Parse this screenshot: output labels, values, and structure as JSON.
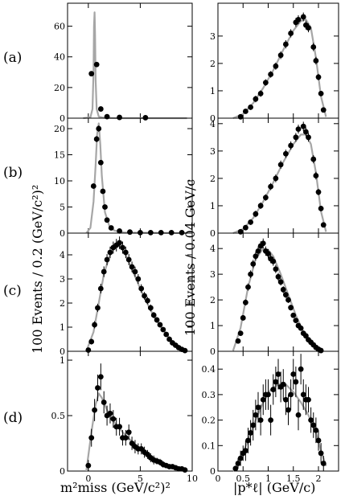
{
  "row_labels": [
    "(a)",
    "(b)",
    "(c)",
    "(d)"
  ],
  "left_ylabel": "100 Events / 0.2 (GeV/c²)²",
  "right_ylabel": "100 Events / 0.04 GeV/c",
  "left_xlabel": "m²miss (GeV/c²)²",
  "right_xlabel": "|p*ℓ| (GeV/c)",
  "colors": {
    "fit_curve": "#a6a6a6",
    "points": "#000000",
    "axes": "#000000"
  },
  "chart_data": [
    {
      "type": "scatter",
      "panel": "a-left",
      "xlim": [
        -2,
        10
      ],
      "ylim": [
        0,
        75
      ],
      "yticks": [
        0,
        20,
        40,
        60
      ],
      "yticklabels": [
        "0",
        "20",
        "40",
        "60"
      ],
      "xticks": [
        0,
        5,
        10
      ],
      "xticklabels": [],
      "grid": false,
      "fit": {
        "x": [
          -0.5,
          0.2,
          0.4,
          0.5,
          0.55,
          0.6,
          0.65,
          0.7,
          0.8,
          1.0,
          1.5,
          3,
          9.5
        ],
        "y": [
          0,
          0.5,
          6,
          30,
          60,
          69,
          55,
          25,
          6,
          1,
          0.2,
          0,
          0
        ]
      },
      "points": {
        "x": [
          0.3,
          0.8,
          1.2,
          1.8,
          3.0,
          5.5
        ],
        "y": [
          29,
          35,
          6,
          1,
          0.5,
          0.3
        ],
        "err": [
          1,
          1,
          0.5,
          0.2,
          0.2,
          0.2
        ]
      }
    },
    {
      "type": "scatter",
      "panel": "a-right",
      "xlim": [
        0,
        2.4
      ],
      "ylim": [
        0,
        4.2
      ],
      "yticks": [
        0,
        1,
        2,
        3
      ],
      "yticklabels": [
        "0",
        "1",
        "2",
        "3"
      ],
      "xticks": [
        0,
        0.5,
        1,
        1.5,
        2
      ],
      "xticklabels": [],
      "grid": false,
      "fit": {
        "x": [
          0.3,
          0.5,
          0.7,
          0.9,
          1.1,
          1.3,
          1.5,
          1.65,
          1.75,
          1.85,
          1.95,
          2.05,
          2.15
        ],
        "y": [
          0,
          0.15,
          0.55,
          1.1,
          1.75,
          2.5,
          3.2,
          3.55,
          3.6,
          3.3,
          2.2,
          0.8,
          0.05
        ]
      },
      "points": {
        "x": [
          0.45,
          0.55,
          0.65,
          0.75,
          0.85,
          0.95,
          1.05,
          1.15,
          1.25,
          1.35,
          1.45,
          1.55,
          1.6,
          1.7,
          1.75,
          1.8,
          1.9,
          1.95,
          2.0,
          2.05,
          2.1
        ],
        "y": [
          0.05,
          0.25,
          0.4,
          0.7,
          0.9,
          1.3,
          1.6,
          1.9,
          2.3,
          2.7,
          3.1,
          3.5,
          3.6,
          3.7,
          3.4,
          3.3,
          2.6,
          2.1,
          1.5,
          0.9,
          0.3
        ],
        "err": [
          0.05,
          0.08,
          0.1,
          0.12,
          0.12,
          0.12,
          0.12,
          0.13,
          0.14,
          0.15,
          0.15,
          0.16,
          0.16,
          0.16,
          0.16,
          0.16,
          0.15,
          0.14,
          0.12,
          0.1,
          0.08
        ]
      }
    },
    {
      "type": "scatter",
      "panel": "b-left",
      "xlim": [
        -2,
        10
      ],
      "ylim": [
        0,
        22
      ],
      "yticks": [
        0,
        5,
        10,
        15,
        20
      ],
      "yticklabels": [
        "0",
        "5",
        "10",
        "15",
        "20"
      ],
      "xticks": [
        0,
        5,
        10
      ],
      "xticklabels": [],
      "grid": false,
      "fit": {
        "x": [
          -0.2,
          0.2,
          0.5,
          0.7,
          0.85,
          1.0,
          1.15,
          1.3,
          1.6,
          2.0,
          2.5,
          3.5,
          9.5
        ],
        "y": [
          0,
          1,
          6,
          13,
          19,
          21,
          17,
          11,
          4,
          1.5,
          0.5,
          0.1,
          0
        ]
      },
      "points": {
        "x": [
          0.5,
          0.8,
          1.0,
          1.2,
          1.4,
          1.6,
          1.8,
          2.2,
          3,
          4,
          5,
          6,
          7,
          8,
          9
        ],
        "y": [
          9,
          18,
          20,
          13.5,
          8,
          5,
          2.5,
          1,
          0.4,
          0.2,
          0.1,
          0.1,
          0.1,
          0.1,
          0.1
        ],
        "err": [
          0.5,
          0.6,
          0.6,
          0.5,
          0.4,
          0.3,
          0.2,
          0.1,
          0.05,
          0.05,
          0.05,
          0.05,
          0.05,
          0.05,
          0.05
        ]
      }
    },
    {
      "type": "scatter",
      "panel": "b-right",
      "xlim": [
        0,
        2.4
      ],
      "ylim": [
        0,
        4.2
      ],
      "yticks": [
        0,
        1,
        2,
        3,
        4
      ],
      "yticklabels": [
        "0",
        "1",
        "2",
        "3",
        "4"
      ],
      "xticks": [
        0,
        0.5,
        1,
        1.5,
        2
      ],
      "xticklabels": [],
      "grid": false,
      "fit": {
        "x": [
          0.3,
          0.5,
          0.7,
          0.9,
          1.1,
          1.3,
          1.5,
          1.65,
          1.75,
          1.85,
          1.95,
          2.05,
          2.15
        ],
        "y": [
          0,
          0.15,
          0.55,
          1.15,
          1.85,
          2.6,
          3.25,
          3.6,
          3.6,
          3.25,
          2.2,
          0.8,
          0.05
        ]
      },
      "points": {
        "x": [
          0.45,
          0.55,
          0.65,
          0.75,
          0.85,
          0.95,
          1.05,
          1.15,
          1.25,
          1.35,
          1.45,
          1.55,
          1.6,
          1.7,
          1.75,
          1.8,
          1.9,
          1.95,
          2.0,
          2.05,
          2.1
        ],
        "y": [
          0.05,
          0.2,
          0.4,
          0.7,
          1.0,
          1.3,
          1.7,
          2.0,
          2.5,
          2.9,
          3.2,
          3.5,
          3.8,
          3.9,
          3.7,
          3.5,
          2.7,
          2.1,
          1.5,
          0.9,
          0.3
        ],
        "err": [
          0.05,
          0.08,
          0.1,
          0.12,
          0.12,
          0.12,
          0.13,
          0.14,
          0.15,
          0.15,
          0.15,
          0.16,
          0.16,
          0.17,
          0.16,
          0.16,
          0.15,
          0.14,
          0.12,
          0.1,
          0.08
        ]
      }
    },
    {
      "type": "scatter",
      "panel": "c-left",
      "xlim": [
        -2,
        10
      ],
      "ylim": [
        0,
        4.9
      ],
      "yticks": [
        0,
        1,
        2,
        3,
        4
      ],
      "yticklabels": [
        "0",
        "1",
        "2",
        "3",
        "4"
      ],
      "xticks": [
        0,
        5,
        10
      ],
      "xticklabels": [],
      "grid": false,
      "fit": {
        "x": [
          -0.2,
          0.5,
          1.0,
          1.5,
          2.0,
          2.5,
          3.0,
          3.5,
          4.0,
          5.0,
          6.0,
          7.0,
          8.0,
          9.0,
          9.5
        ],
        "y": [
          0,
          0.8,
          2.0,
          3.2,
          3.9,
          4.35,
          4.4,
          4.1,
          3.6,
          2.6,
          1.7,
          1.0,
          0.45,
          0.12,
          0.03
        ]
      },
      "points": {
        "x": [
          0,
          0.3,
          0.6,
          0.9,
          1.2,
          1.5,
          1.8,
          2.1,
          2.4,
          2.7,
          3.0,
          3.3,
          3.6,
          3.9,
          4.2,
          4.5,
          4.8,
          5.1,
          5.4,
          5.7,
          6.0,
          6.3,
          6.6,
          6.9,
          7.2,
          7.5,
          7.8,
          8.1,
          8.4,
          8.7,
          9.0,
          9.3
        ],
        "y": [
          0.05,
          0.4,
          1.1,
          1.8,
          2.6,
          3.3,
          3.8,
          4.1,
          4.3,
          4.4,
          4.5,
          4.3,
          4.1,
          3.8,
          3.5,
          3.3,
          3.0,
          2.6,
          2.3,
          2.1,
          1.8,
          1.5,
          1.3,
          1.1,
          0.9,
          0.7,
          0.5,
          0.35,
          0.25,
          0.15,
          0.08,
          0.03
        ],
        "err": [
          0.05,
          0.12,
          0.15,
          0.17,
          0.2,
          0.22,
          0.23,
          0.24,
          0.25,
          0.26,
          0.26,
          0.25,
          0.24,
          0.23,
          0.22,
          0.21,
          0.2,
          0.18,
          0.16,
          0.15,
          0.14,
          0.13,
          0.12,
          0.11,
          0.1,
          0.09,
          0.08,
          0.07,
          0.06,
          0.05,
          0.04,
          0.03
        ]
      }
    },
    {
      "type": "scatter",
      "panel": "c-right",
      "xlim": [
        0,
        2.4
      ],
      "ylim": [
        0,
        4.6
      ],
      "yticks": [
        0,
        1,
        2,
        3,
        4
      ],
      "yticklabels": [
        "0",
        "1",
        "2",
        "3",
        "4"
      ],
      "xticks": [
        0,
        0.5,
        1,
        1.5,
        2
      ],
      "xticklabels": [],
      "grid": false,
      "fit": {
        "x": [
          0.3,
          0.45,
          0.6,
          0.75,
          0.9,
          1.0,
          1.1,
          1.25,
          1.4,
          1.55,
          1.7,
          1.85,
          2.0,
          2.1
        ],
        "y": [
          0.02,
          0.9,
          2.5,
          3.6,
          4.0,
          3.95,
          3.7,
          3.0,
          2.2,
          1.4,
          0.75,
          0.3,
          0.07,
          0.01
        ]
      },
      "points": {
        "x": [
          0.4,
          0.45,
          0.5,
          0.55,
          0.6,
          0.65,
          0.7,
          0.75,
          0.8,
          0.85,
          0.9,
          0.95,
          1.0,
          1.05,
          1.1,
          1.15,
          1.2,
          1.25,
          1.3,
          1.35,
          1.4,
          1.45,
          1.5,
          1.55,
          1.6,
          1.65,
          1.7,
          1.75,
          1.8,
          1.85,
          1.9,
          1.95,
          2.0,
          2.05
        ],
        "y": [
          0.4,
          0.7,
          1.3,
          1.9,
          2.5,
          3.0,
          3.4,
          3.7,
          3.9,
          4.1,
          4.2,
          3.9,
          3.8,
          3.6,
          3.5,
          3.2,
          2.9,
          2.7,
          2.4,
          2.2,
          2.0,
          1.7,
          1.4,
          1.2,
          1.0,
          0.9,
          0.7,
          0.6,
          0.45,
          0.35,
          0.25,
          0.15,
          0.08,
          0.03
        ],
        "err": [
          0.06,
          0.08,
          0.1,
          0.12,
          0.14,
          0.15,
          0.16,
          0.17,
          0.18,
          0.18,
          0.19,
          0.18,
          0.18,
          0.17,
          0.17,
          0.16,
          0.15,
          0.14,
          0.13,
          0.12,
          0.12,
          0.11,
          0.1,
          0.09,
          0.08,
          0.07,
          0.07,
          0.06,
          0.05,
          0.05,
          0.04,
          0.03,
          0.03,
          0.02
        ]
      }
    },
    {
      "type": "scatter",
      "panel": "d-left",
      "xlim": [
        -2,
        10
      ],
      "ylim": [
        0,
        1.08
      ],
      "yticks": [
        0,
        0.5,
        1
      ],
      "yticklabels": [
        "0",
        "0.5",
        "1"
      ],
      "xticks": [
        0,
        5,
        10
      ],
      "xticklabels": [
        "0",
        "5",
        "10"
      ],
      "grid": false,
      "fit": {
        "x": [
          -0.2,
          0.3,
          0.7,
          1.0,
          1.3,
          1.8,
          2.5,
          3.5,
          4.5,
          5.5,
          6.5,
          7.5,
          8.5,
          9.5
        ],
        "y": [
          0,
          0.35,
          0.6,
          0.7,
          0.66,
          0.55,
          0.44,
          0.33,
          0.24,
          0.16,
          0.1,
          0.055,
          0.025,
          0.01
        ]
      },
      "points": {
        "x": [
          0,
          0.3,
          0.6,
          0.9,
          1.2,
          1.5,
          1.8,
          2.1,
          2.4,
          2.7,
          3.0,
          3.3,
          3.6,
          3.9,
          4.2,
          4.5,
          4.8,
          5.1,
          5.4,
          5.7,
          6.0,
          6.3,
          6.6,
          6.9,
          7.2,
          7.5,
          7.8,
          8.1,
          8.4,
          8.7,
          9.0,
          9.3
        ],
        "y": [
          0.05,
          0.3,
          0.55,
          0.75,
          0.85,
          0.62,
          0.5,
          0.52,
          0.47,
          0.4,
          0.4,
          0.3,
          0.3,
          0.35,
          0.25,
          0.22,
          0.2,
          0.2,
          0.17,
          0.15,
          0.12,
          0.1,
          0.09,
          0.08,
          0.06,
          0.05,
          0.04,
          0.04,
          0.03,
          0.02,
          0.02,
          0.01
        ],
        "err": [
          0.05,
          0.08,
          0.1,
          0.12,
          0.12,
          0.1,
          0.09,
          0.09,
          0.08,
          0.08,
          0.08,
          0.07,
          0.07,
          0.07,
          0.06,
          0.06,
          0.05,
          0.05,
          0.05,
          0.04,
          0.04,
          0.04,
          0.03,
          0.03,
          0.03,
          0.02,
          0.02,
          0.02,
          0.02,
          0.02,
          0.02,
          0.01
        ]
      }
    },
    {
      "type": "scatter",
      "panel": "d-right",
      "xlim": [
        0,
        2.4
      ],
      "ylim": [
        0,
        0.47
      ],
      "yticks": [
        0,
        0.1,
        0.2,
        0.3,
        0.4
      ],
      "yticklabels": [
        "0",
        "0.1",
        "0.2",
        "0.3",
        "0.4"
      ],
      "xticks": [
        0,
        0.5,
        1,
        1.5,
        2
      ],
      "xticklabels": [
        "0",
        "0.5",
        "1",
        "1.5",
        "2"
      ],
      "grid": false,
      "fit": {
        "x": [
          0.3,
          0.45,
          0.6,
          0.75,
          0.9,
          1.05,
          1.2,
          1.35,
          1.5,
          1.65,
          1.8,
          1.95,
          2.05,
          2.15
        ],
        "y": [
          0,
          0.05,
          0.12,
          0.2,
          0.27,
          0.32,
          0.34,
          0.34,
          0.31,
          0.27,
          0.22,
          0.15,
          0.08,
          0.02
        ]
      },
      "points": {
        "x": [
          0.35,
          0.4,
          0.45,
          0.5,
          0.55,
          0.6,
          0.65,
          0.7,
          0.75,
          0.8,
          0.85,
          0.9,
          0.95,
          1.0,
          1.05,
          1.1,
          1.15,
          1.2,
          1.25,
          1.3,
          1.35,
          1.4,
          1.45,
          1.5,
          1.55,
          1.6,
          1.65,
          1.7,
          1.75,
          1.8,
          1.85,
          1.9,
          1.95,
          2.0,
          2.05,
          2.1
        ],
        "y": [
          0.01,
          0.03,
          0.05,
          0.07,
          0.08,
          0.12,
          0.15,
          0.18,
          0.22,
          0.25,
          0.2,
          0.28,
          0.3,
          0.3,
          0.2,
          0.32,
          0.35,
          0.38,
          0.33,
          0.34,
          0.28,
          0.24,
          0.3,
          0.38,
          0.35,
          0.22,
          0.4,
          0.3,
          0.28,
          0.28,
          0.2,
          0.18,
          0.16,
          0.12,
          0.07,
          0.03
        ],
        "err": [
          0.01,
          0.02,
          0.03,
          0.03,
          0.04,
          0.05,
          0.05,
          0.06,
          0.06,
          0.06,
          0.06,
          0.06,
          0.06,
          0.06,
          0.06,
          0.06,
          0.06,
          0.06,
          0.06,
          0.06,
          0.06,
          0.06,
          0.06,
          0.06,
          0.06,
          0.06,
          0.06,
          0.06,
          0.06,
          0.05,
          0.05,
          0.05,
          0.05,
          0.04,
          0.04,
          0.03
        ]
      }
    }
  ]
}
